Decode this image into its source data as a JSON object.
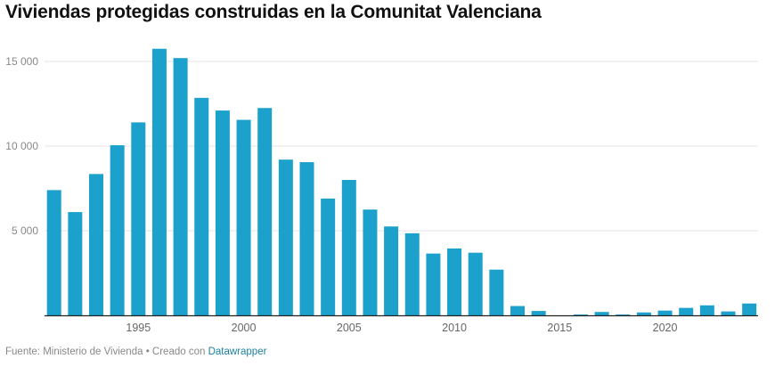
{
  "title": "Viviendas protegidas construidas en la Comunitat Valenciana",
  "footer": {
    "source": "Fuente: Ministerio de Vivienda",
    "separator": " • ",
    "created": "Creado con ",
    "tool": "Datawrapper"
  },
  "colors": {
    "bar": "#1ba1cc",
    "grid": "#e6e6e6",
    "baseline": "#222222",
    "link": "#1d81a2"
  },
  "chart_data": {
    "type": "bar",
    "title": "Viviendas protegidas construidas en la Comunitat Valenciana",
    "xlabel": "",
    "ylabel": "",
    "ylim": [
      0,
      16000
    ],
    "grid": true,
    "y_ticks": [
      5000,
      10000,
      15000
    ],
    "y_tick_labels": [
      "5 000",
      "10 000",
      "15 000"
    ],
    "x_ticks": [
      1995,
      2000,
      2005,
      2010,
      2015,
      2020
    ],
    "x_tick_labels": [
      "1995",
      "2000",
      "2005",
      "2010",
      "2015",
      "2020"
    ],
    "categories": [
      1991,
      1992,
      1993,
      1994,
      1995,
      1996,
      1997,
      1998,
      1999,
      2000,
      2001,
      2002,
      2003,
      2004,
      2005,
      2006,
      2007,
      2008,
      2009,
      2010,
      2011,
      2012,
      2013,
      2014,
      2015,
      2016,
      2017,
      2018,
      2019,
      2020,
      2021,
      2022,
      2023,
      2024
    ],
    "values": [
      7400,
      6100,
      8350,
      10050,
      11400,
      15750,
      15200,
      12850,
      12100,
      11550,
      12250,
      9200,
      9050,
      6900,
      8000,
      6250,
      5250,
      4850,
      3650,
      3950,
      3700,
      2700,
      550,
      260,
      0,
      50,
      200,
      50,
      170,
      280,
      440,
      590,
      230,
      700
    ]
  }
}
